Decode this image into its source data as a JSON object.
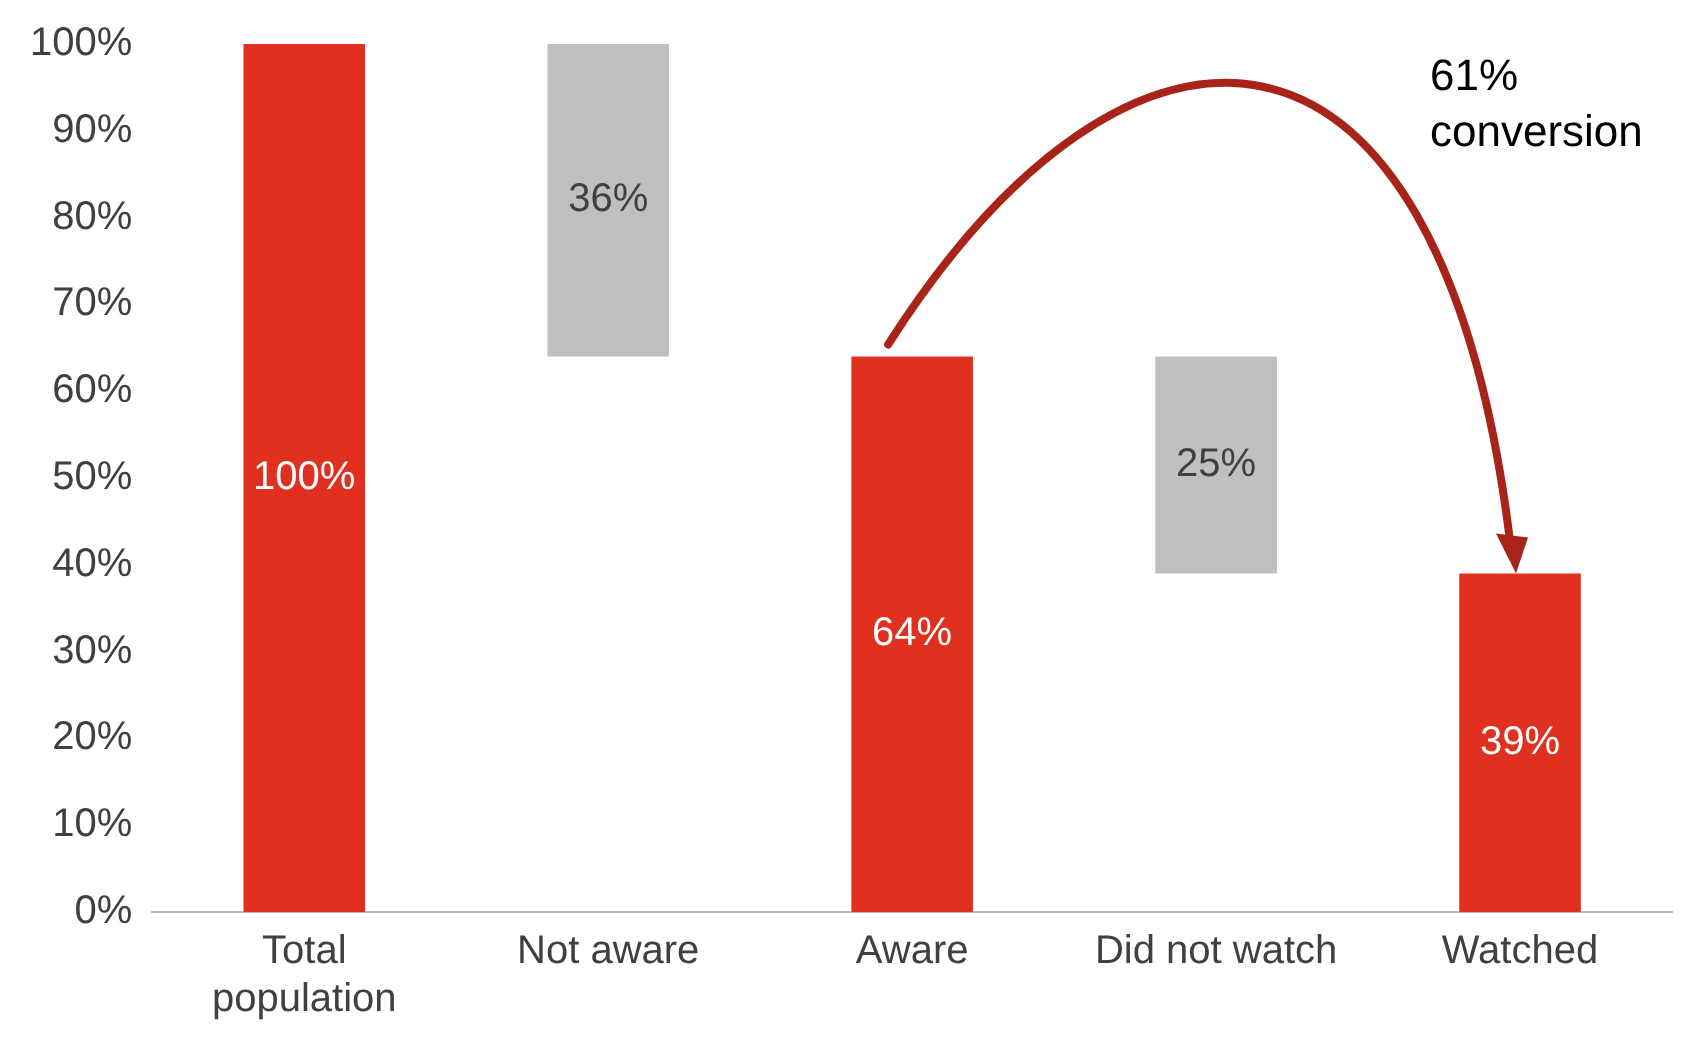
{
  "chart_data": {
    "type": "bar",
    "categories": [
      "Total population",
      "Not aware",
      "Aware",
      "Did not watch",
      "Watched"
    ],
    "values": [
      100,
      36,
      64,
      25,
      39
    ],
    "base": [
      0,
      64,
      0,
      39,
      0
    ],
    "colors": [
      "#e03020",
      "#bfbfbf",
      "#e03020",
      "#bfbfbf",
      "#e03020"
    ],
    "value_labels": [
      "100%",
      "36%",
      "64%",
      "25%",
      "39%"
    ],
    "ylim": [
      0,
      100
    ],
    "yticks": [
      {
        "value": 0,
        "label": "0%"
      },
      {
        "value": 10,
        "label": "10%"
      },
      {
        "value": 20,
        "label": "20%"
      },
      {
        "value": 30,
        "label": "30%"
      },
      {
        "value": 40,
        "label": "40%"
      },
      {
        "value": 50,
        "label": "50%"
      },
      {
        "value": 60,
        "label": "60%"
      },
      {
        "value": 70,
        "label": "70%"
      },
      {
        "value": 80,
        "label": "80%"
      },
      {
        "value": 90,
        "label": "90%"
      },
      {
        "value": 100,
        "label": "100%"
      }
    ],
    "grid": false,
    "legend": false,
    "annotations": [
      "61% conversion"
    ]
  }
}
